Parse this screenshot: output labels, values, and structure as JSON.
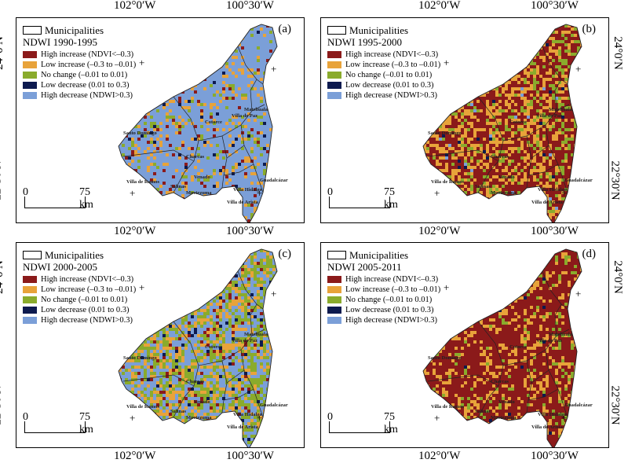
{
  "coords": {
    "lon_west": "102°0′W",
    "lon_east": "100°30′W",
    "lat_north": "24°0′N",
    "lat_south": "22°30′N"
  },
  "legend": {
    "municipalities": "Municipalities",
    "classes": [
      {
        "label": "High increase (NDVI<–0.3)",
        "color": "#8b1a1a"
      },
      {
        "label": "Low increase (–0.3 to –0.01)",
        "color": "#e8a33a"
      },
      {
        "label": "No change (–0.01 to 0.01)",
        "color": "#8aab2c"
      },
      {
        "label": "Low decrease (0.01 to 0.3)",
        "color": "#0d1a4f"
      },
      {
        "label": "High decrease (NDWI>0.3)",
        "color": "#7b9fd8"
      }
    ]
  },
  "scale": {
    "zero": "0",
    "distance": "75 km"
  },
  "towns": [
    "Cotorce",
    "Villa de Paz",
    "Santo Domingo",
    "Charcas",
    "Venado",
    "Villa de Ramos",
    "Moctezuma",
    "Villa Hidalgo",
    "Villa de Arista",
    "Guadalcázar",
    "Matehuala",
    "Salinas"
  ],
  "panels": [
    {
      "id": "a",
      "tag": "(a)",
      "title": "NDWI 1990-1995",
      "mix": [
        0.04,
        0.12,
        0.06,
        0.02,
        0.76
      ]
    },
    {
      "id": "b",
      "tag": "(b)",
      "title": "NDWI 1995-2000",
      "mix": [
        0.52,
        0.36,
        0.1,
        0.01,
        0.01
      ]
    },
    {
      "id": "c",
      "tag": "(c)",
      "title": "NDWI 2000-2005",
      "mix": [
        0.05,
        0.22,
        0.28,
        0.03,
        0.42
      ]
    },
    {
      "id": "d",
      "tag": "(d)",
      "title": "NDWI 2005-2011",
      "mix": [
        0.72,
        0.22,
        0.05,
        0.01,
        0.0
      ]
    }
  ]
}
